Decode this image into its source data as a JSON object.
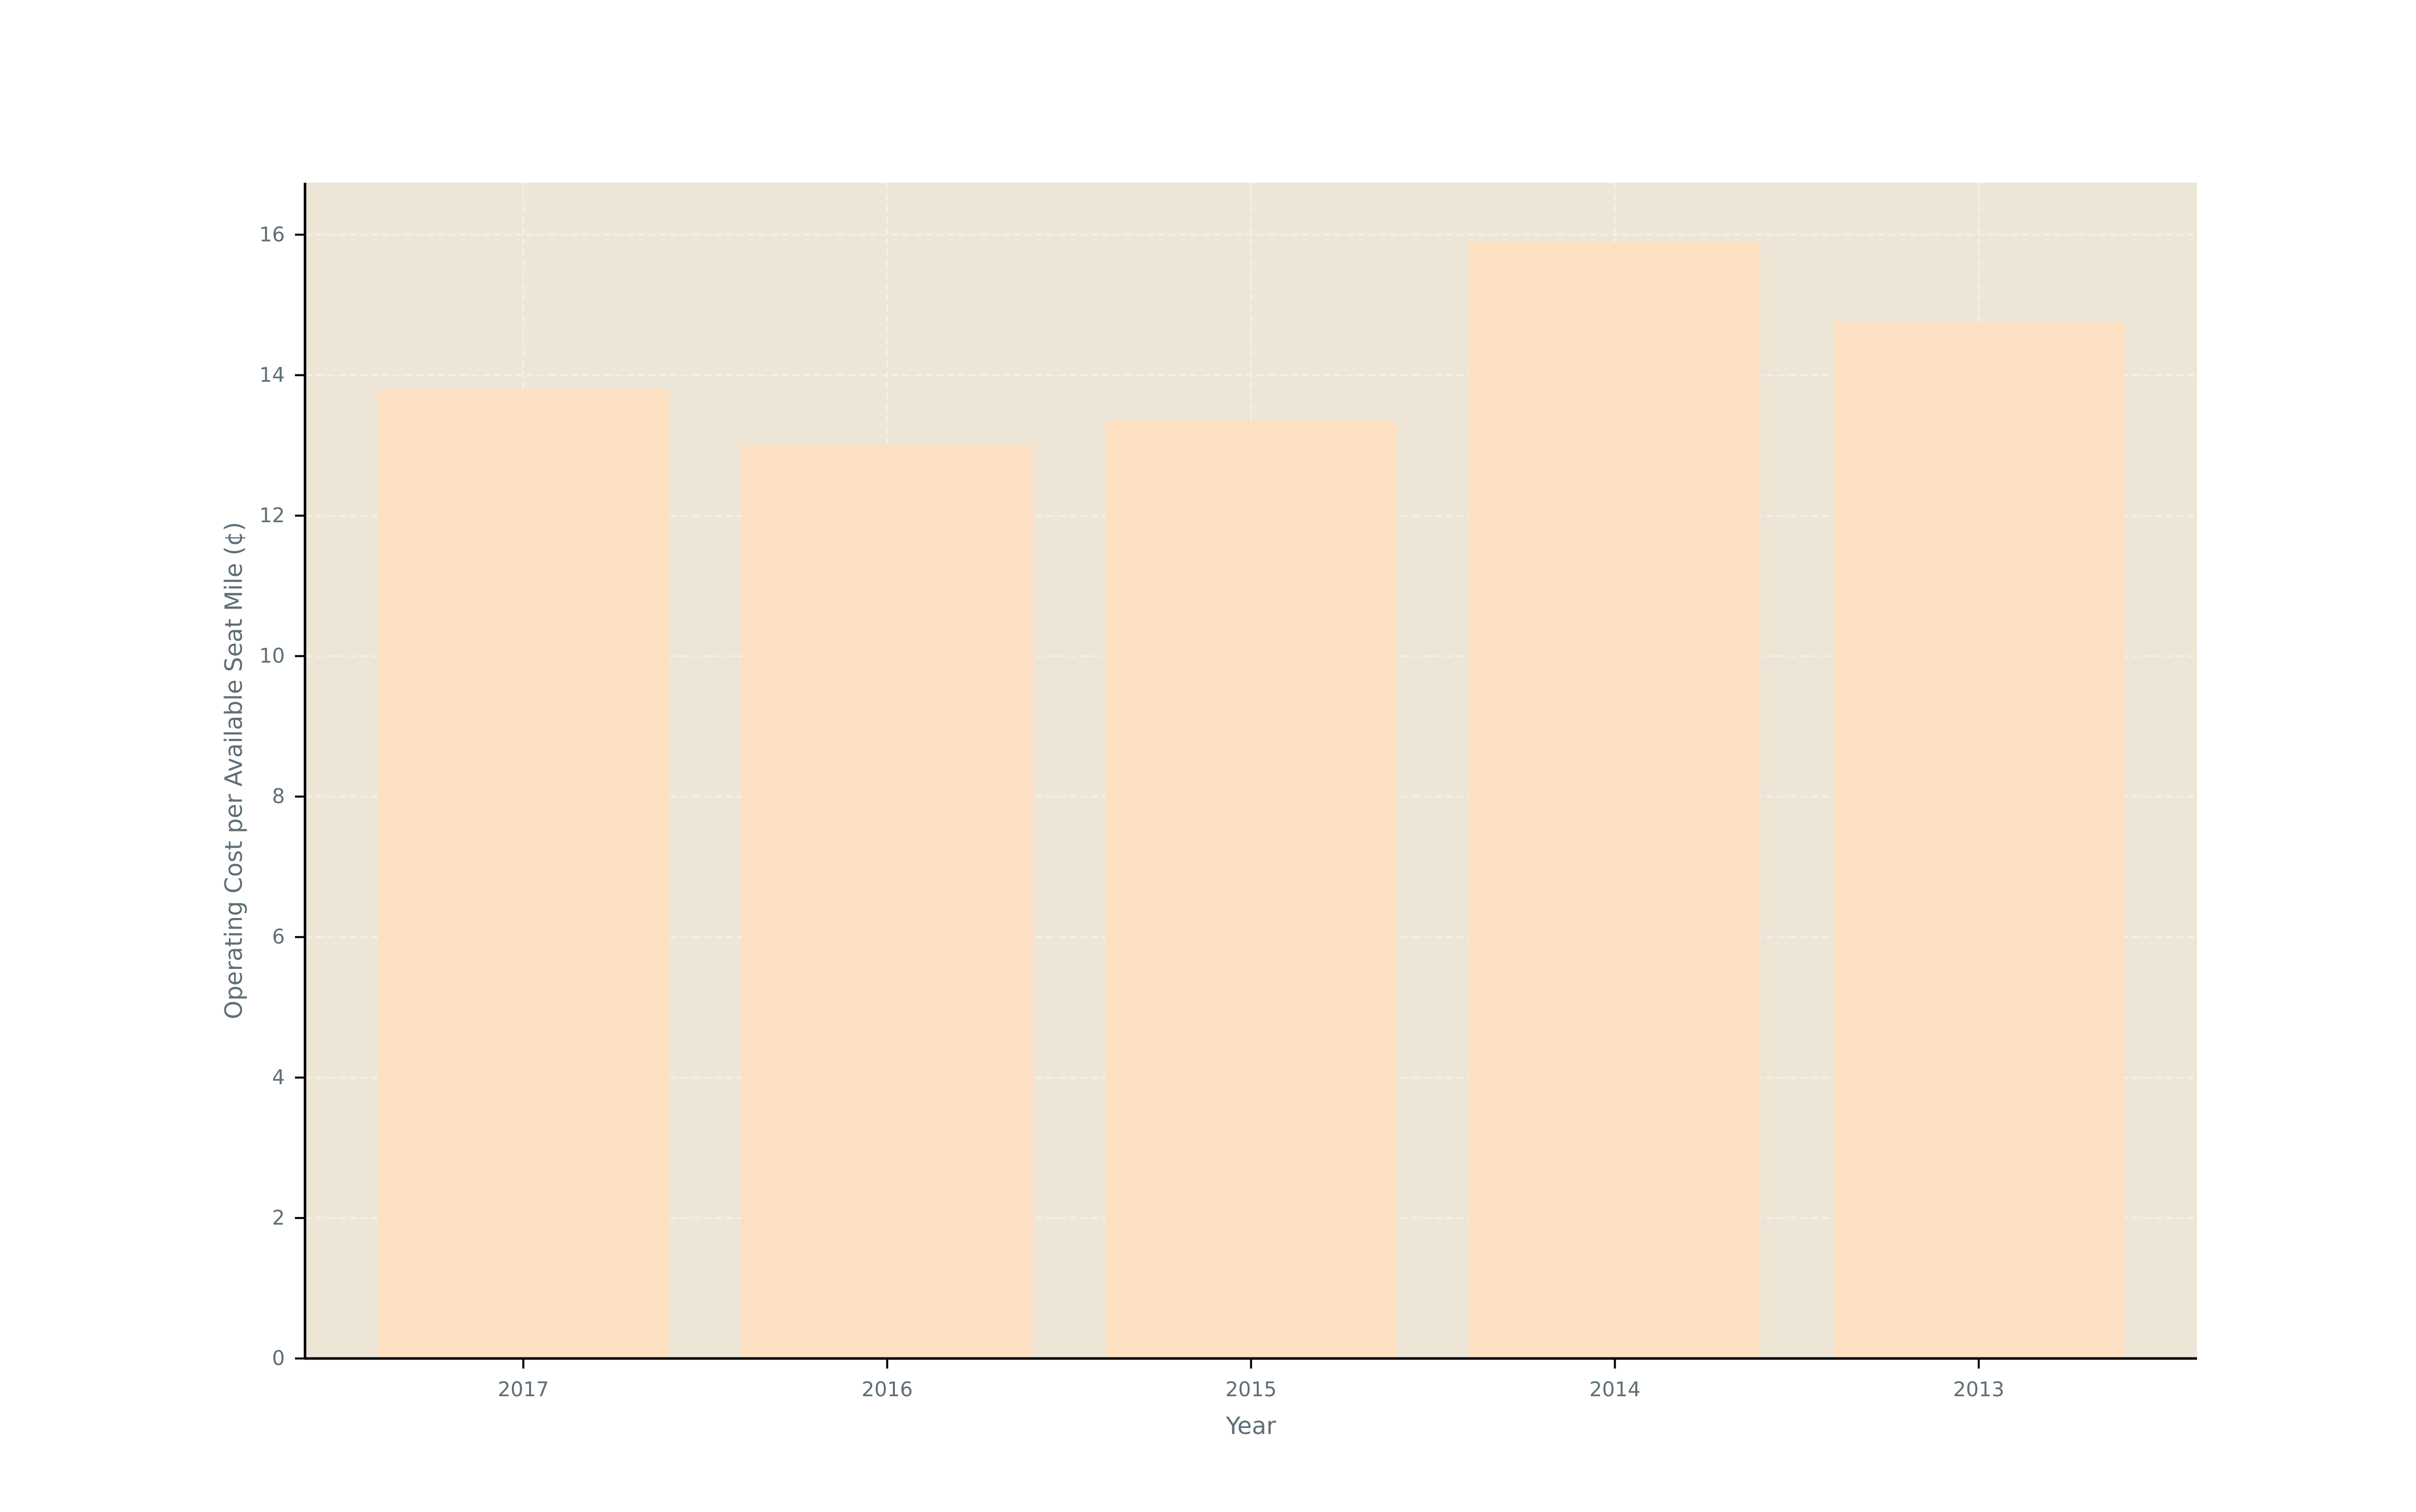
{
  "chart_data": {
    "type": "bar",
    "title": "",
    "categories": [
      "2017",
      "2016",
      "2015",
      "2014",
      "2013"
    ],
    "values": [
      13.8,
      13.0,
      13.35,
      15.9,
      14.75
    ],
    "xlabel": "Year",
    "ylabel": "Operating Cost per Available Seat Mile (¢)",
    "ylim": [
      0,
      16.74
    ],
    "yticks": [
      0,
      2,
      4,
      6,
      8,
      10,
      12,
      14,
      16
    ],
    "grid": true,
    "legend": "none",
    "colors": {
      "bar": "#fde0c2",
      "plot_background": "#ede6d6",
      "grid": "#f6f1e6",
      "axis": "#000000",
      "text": "#5e6e77"
    }
  }
}
